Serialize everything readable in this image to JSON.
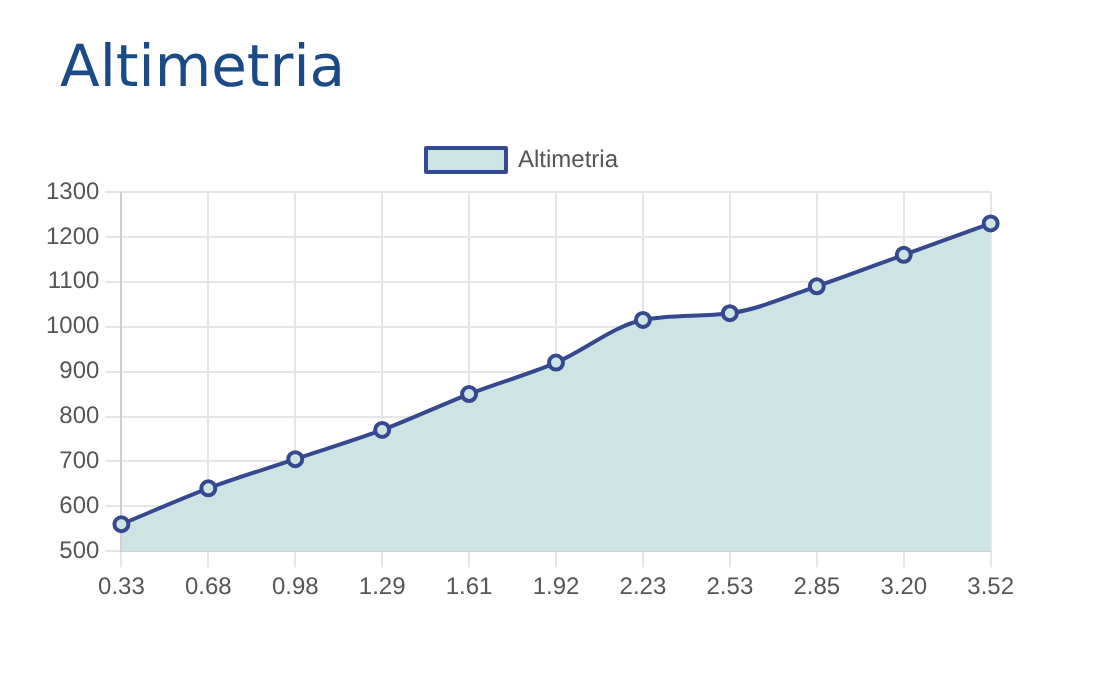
{
  "chart_data": {
    "type": "area",
    "title": "Altimetria",
    "categories": [
      "0.33",
      "0.68",
      "0.98",
      "1.29",
      "1.61",
      "1.92",
      "2.23",
      "2.53",
      "2.85",
      "3.20",
      "3.52"
    ],
    "series": [
      {
        "name": "Altimetria",
        "color": "#34498f",
        "values": [
          560,
          640,
          705,
          770,
          850,
          920,
          1015,
          1030,
          1090,
          1160,
          1230
        ]
      }
    ],
    "ylim": [
      500,
      1300
    ],
    "yticks": [
      500,
      600,
      700,
      800,
      900,
      1000,
      1100,
      1200,
      1300
    ],
    "grid": true,
    "legend": "top",
    "marker": "circle"
  }
}
